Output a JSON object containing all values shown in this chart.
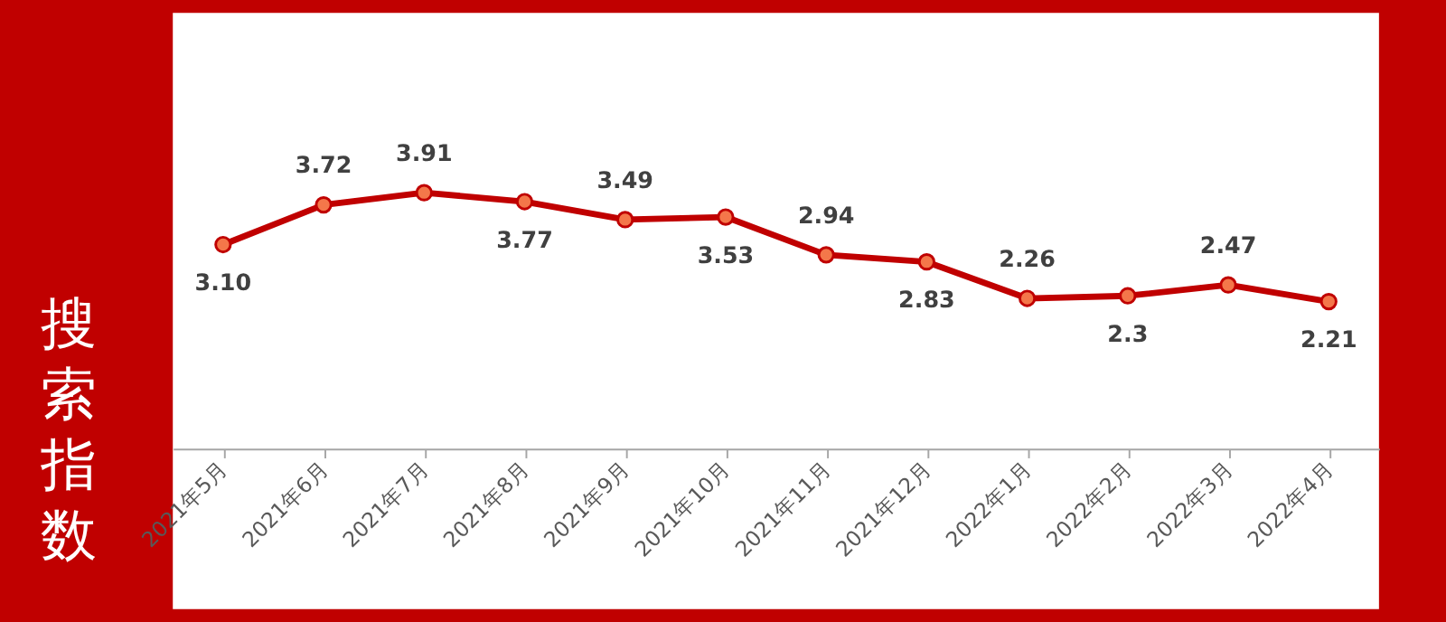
{
  "chart_data": {
    "type": "line",
    "ylabel": "搜索指数",
    "categories": [
      "2021年5月",
      "2021年6月",
      "2021年7月",
      "2021年8月",
      "2021年9月",
      "2021年10月",
      "2021年11月",
      "2021年12月",
      "2022年1月",
      "2022年2月",
      "2022年3月",
      "2022年4月"
    ],
    "series": [
      {
        "color": "#c00000",
        "values": [
          3.1,
          3.72,
          3.91,
          3.77,
          3.49,
          3.53,
          2.94,
          2.83,
          2.26,
          2.3,
          2.47,
          2.21
        ],
        "value_labels": [
          "3.10",
          "3.72",
          "3.91",
          "3.77",
          "3.49",
          "3.53",
          "2.94",
          "2.83",
          "2.26",
          "2.3",
          "2.47",
          "2.21"
        ]
      }
    ],
    "marker": "circle",
    "line_style": "solid"
  }
}
